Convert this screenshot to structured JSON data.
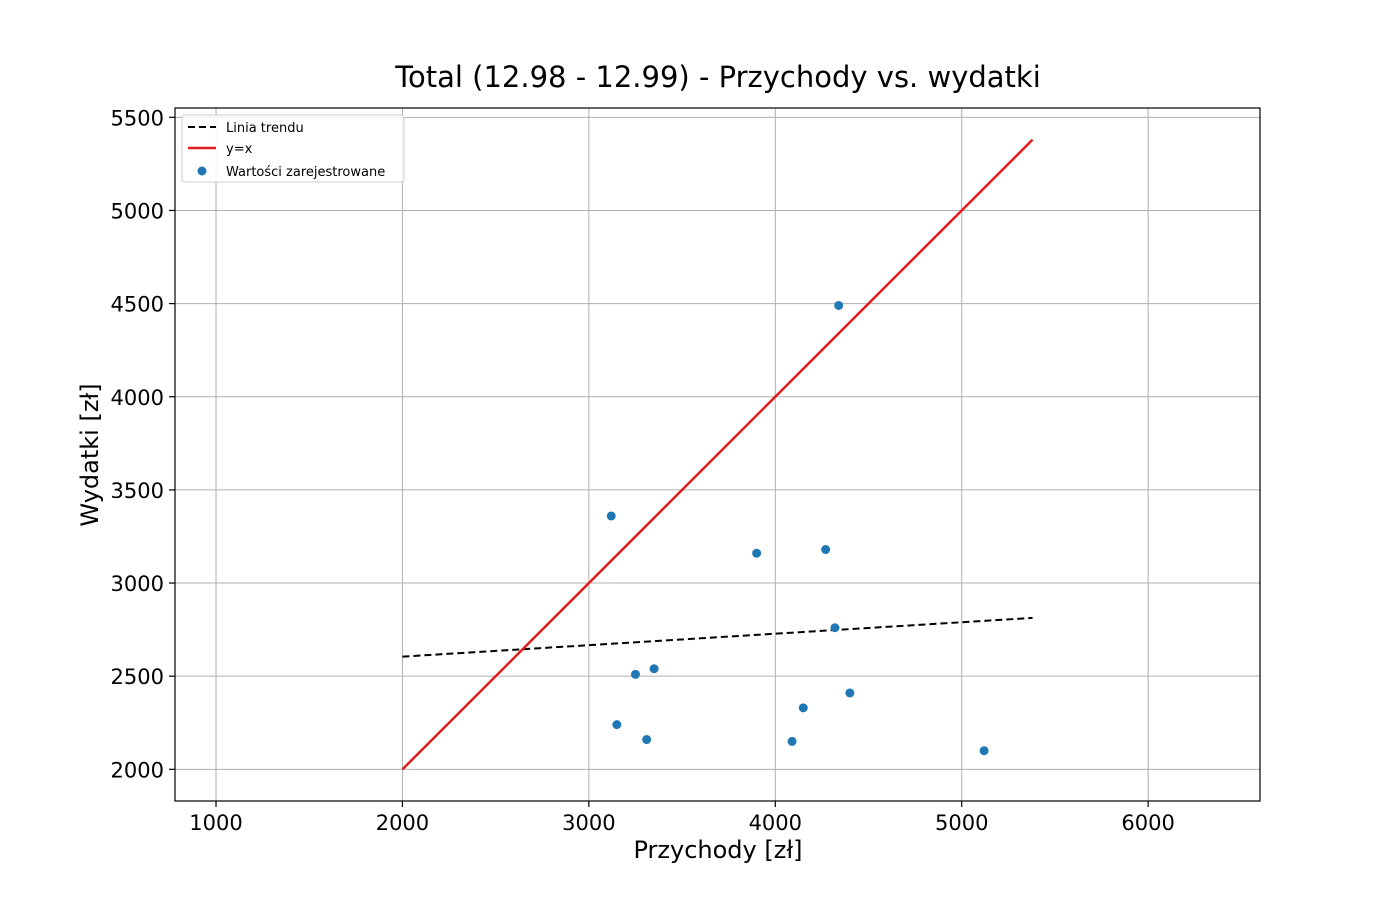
{
  "chart_data": {
    "type": "scatter",
    "title": "Total (12.98 - 12.99) - Przychody vs. wydatki",
    "xlabel": "Przychody [zł]",
    "ylabel": "Wydatki [zł]",
    "xlim": [
      780,
      6600
    ],
    "ylim": [
      1830,
      5550
    ],
    "xticks": [
      1000,
      2000,
      3000,
      4000,
      5000,
      6000
    ],
    "yticks": [
      2000,
      2500,
      3000,
      3500,
      4000,
      4500,
      5000,
      5500
    ],
    "grid": true,
    "legend_position": "top-left",
    "points": {
      "name": "Wartości zarejestrowane",
      "color": "#1f77b4",
      "x": [
        4340,
        3120,
        3900,
        4270,
        4320,
        3350,
        3250,
        4400,
        4150,
        3150,
        3310,
        4090,
        5120
      ],
      "y": [
        4490,
        3360,
        3160,
        3180,
        2760,
        2540,
        2510,
        2410,
        2330,
        2240,
        2160,
        2150,
        2100
      ]
    },
    "lines": [
      {
        "name": "Linia trendu",
        "color": "#000000",
        "style": "dashed",
        "x": [
          2000,
          5380
        ],
        "y": [
          2605,
          2813
        ]
      },
      {
        "name": "y=x",
        "color": "#e31a1c",
        "style": "solid",
        "x": [
          2000,
          5380
        ],
        "y": [
          2000,
          5380
        ]
      }
    ],
    "legend": [
      {
        "label": "Linia trendu",
        "kind": "dashed-line",
        "color": "#000000"
      },
      {
        "label": "y=x",
        "kind": "solid-line",
        "color": "#e31a1c"
      },
      {
        "label": "Wartości zarejestrowane",
        "kind": "marker",
        "color": "#1f77b4"
      }
    ]
  }
}
